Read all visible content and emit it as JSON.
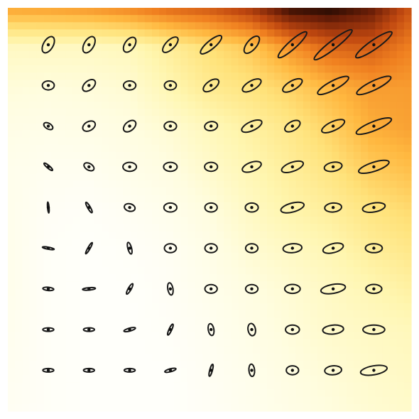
{
  "chart_data": {
    "type": "heatmap",
    "title": "",
    "xlabel": "",
    "ylabel": "",
    "grid": false,
    "legend": "none",
    "colormap": {
      "name": "afmhot_r",
      "stops": [
        "#ffffff",
        "#fffde0",
        "#fff6b0",
        "#ffe27a",
        "#ffb840",
        "#f08020",
        "#c04810",
        "#702008",
        "#000000"
      ]
    },
    "heatmap_intensity": {
      "rows": [
        "y0",
        "y1",
        "y2",
        "y3",
        "y4",
        "y5",
        "y6",
        "y7",
        "y8",
        "y9",
        "y10"
      ],
      "cols": [
        "x0",
        "x1",
        "x2",
        "x3",
        "x4",
        "x5",
        "x6",
        "x7",
        "x8",
        "x9",
        "x10"
      ],
      "values": [
        [
          0.55,
          0.56,
          0.58,
          0.62,
          0.68,
          0.72,
          0.8,
          0.95,
          0.97,
          0.9,
          0.72
        ],
        [
          0.2,
          0.2,
          0.2,
          0.22,
          0.3,
          0.38,
          0.45,
          0.58,
          0.68,
          0.7,
          0.62
        ],
        [
          0.14,
          0.13,
          0.14,
          0.16,
          0.24,
          0.32,
          0.36,
          0.42,
          0.5,
          0.56,
          0.56
        ],
        [
          0.1,
          0.09,
          0.1,
          0.12,
          0.16,
          0.22,
          0.28,
          0.34,
          0.42,
          0.52,
          0.55
        ],
        [
          0.08,
          0.06,
          0.06,
          0.09,
          0.12,
          0.18,
          0.24,
          0.3,
          0.36,
          0.44,
          0.48
        ],
        [
          0.08,
          0.04,
          0.03,
          0.05,
          0.08,
          0.13,
          0.2,
          0.26,
          0.3,
          0.36,
          0.4
        ],
        [
          0.08,
          0.03,
          0.02,
          0.03,
          0.05,
          0.1,
          0.16,
          0.2,
          0.24,
          0.3,
          0.34
        ],
        [
          0.08,
          0.03,
          0.02,
          0.02,
          0.04,
          0.08,
          0.12,
          0.16,
          0.2,
          0.24,
          0.28
        ],
        [
          0.07,
          0.03,
          0.02,
          0.02,
          0.03,
          0.06,
          0.1,
          0.14,
          0.18,
          0.2,
          0.22
        ],
        [
          0.06,
          0.03,
          0.02,
          0.02,
          0.02,
          0.05,
          0.08,
          0.12,
          0.15,
          0.18,
          0.2
        ],
        [
          0.05,
          0.03,
          0.02,
          0.02,
          0.02,
          0.04,
          0.07,
          0.1,
          0.13,
          0.16,
          0.18
        ]
      ]
    },
    "ellipse_field": {
      "columns": 9,
      "rows": 9,
      "description_keys": [
        "major",
        "minor",
        "angle_deg"
      ],
      "cells": [
        [
          [
            0.9,
            0.65,
            -60
          ],
          [
            0.9,
            0.65,
            -60
          ],
          [
            0.85,
            0.65,
            -55
          ],
          [
            1.0,
            0.6,
            -45
          ],
          [
            1.35,
            0.55,
            -40
          ],
          [
            1.05,
            0.65,
            -50
          ],
          [
            1.9,
            0.55,
            -42
          ],
          [
            2.4,
            0.55,
            -38
          ],
          [
            2.2,
            0.6,
            -35
          ]
        ],
        [
          [
            0.6,
            0.6,
            0
          ],
          [
            0.75,
            0.6,
            -40
          ],
          [
            0.62,
            0.6,
            0
          ],
          [
            0.6,
            0.6,
            0
          ],
          [
            0.9,
            0.6,
            -35
          ],
          [
            1.05,
            0.6,
            -30
          ],
          [
            1.1,
            0.6,
            -30
          ],
          [
            1.75,
            0.6,
            -28
          ],
          [
            1.9,
            0.6,
            -26
          ]
        ],
        [
          [
            0.5,
            0.38,
            30
          ],
          [
            0.68,
            0.6,
            -30
          ],
          [
            0.72,
            0.6,
            -40
          ],
          [
            0.62,
            0.6,
            0
          ],
          [
            0.65,
            0.6,
            -10
          ],
          [
            1.1,
            0.6,
            -25
          ],
          [
            0.85,
            0.6,
            -30
          ],
          [
            1.25,
            0.6,
            -25
          ],
          [
            1.9,
            0.6,
            -22
          ]
        ],
        [
          [
            0.55,
            0.18,
            40
          ],
          [
            0.55,
            0.45,
            30
          ],
          [
            0.68,
            0.6,
            0
          ],
          [
            0.68,
            0.6,
            0
          ],
          [
            0.65,
            0.6,
            0
          ],
          [
            1.0,
            0.6,
            -20
          ],
          [
            1.15,
            0.6,
            -20
          ],
          [
            0.9,
            0.6,
            -10
          ],
          [
            1.6,
            0.6,
            -18
          ]
        ],
        [
          [
            0.55,
            0.1,
            85
          ],
          [
            0.6,
            0.18,
            60
          ],
          [
            0.55,
            0.5,
            15
          ],
          [
            0.65,
            0.6,
            0
          ],
          [
            0.62,
            0.6,
            0
          ],
          [
            0.65,
            0.6,
            0
          ],
          [
            1.2,
            0.6,
            -15
          ],
          [
            0.85,
            0.6,
            -5
          ],
          [
            1.15,
            0.6,
            -10
          ]
        ],
        [
          [
            0.6,
            0.14,
            10
          ],
          [
            0.65,
            0.15,
            -60
          ],
          [
            0.6,
            0.25,
            75
          ],
          [
            0.6,
            0.6,
            0
          ],
          [
            0.62,
            0.6,
            0
          ],
          [
            0.62,
            0.6,
            0
          ],
          [
            0.95,
            0.6,
            -5
          ],
          [
            1.05,
            0.6,
            -15
          ],
          [
            0.85,
            0.6,
            0
          ]
        ],
        [
          [
            0.55,
            0.22,
            5
          ],
          [
            0.65,
            0.16,
            -5
          ],
          [
            0.6,
            0.2,
            -60
          ],
          [
            0.62,
            0.35,
            80
          ],
          [
            0.62,
            0.58,
            0
          ],
          [
            0.62,
            0.58,
            0
          ],
          [
            0.78,
            0.6,
            0
          ],
          [
            1.25,
            0.6,
            -10
          ],
          [
            0.8,
            0.6,
            0
          ]
        ],
        [
          [
            0.55,
            0.24,
            0
          ],
          [
            0.55,
            0.24,
            0
          ],
          [
            0.6,
            0.2,
            -15
          ],
          [
            0.6,
            0.18,
            -65
          ],
          [
            0.6,
            0.38,
            80
          ],
          [
            0.62,
            0.5,
            80
          ],
          [
            0.7,
            0.6,
            0
          ],
          [
            1.05,
            0.6,
            -5
          ],
          [
            1.1,
            0.6,
            0
          ]
        ],
        [
          [
            0.55,
            0.24,
            0
          ],
          [
            0.55,
            0.24,
            0
          ],
          [
            0.55,
            0.24,
            0
          ],
          [
            0.58,
            0.2,
            -15
          ],
          [
            0.62,
            0.18,
            -75
          ],
          [
            0.62,
            0.38,
            85
          ],
          [
            0.62,
            0.6,
            0
          ],
          [
            0.85,
            0.6,
            -5
          ],
          [
            1.35,
            0.6,
            -10
          ]
        ]
      ]
    }
  }
}
